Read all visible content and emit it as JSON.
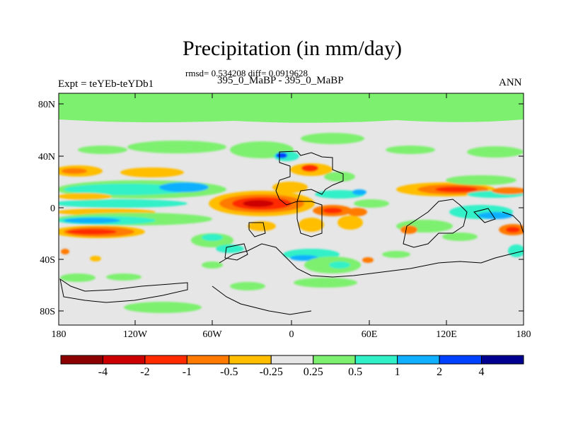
{
  "title": "Precipitation (in mm/day)",
  "stats": "rmsd= 0.534208 diff= 0.0919628",
  "case": "395_0_MaBP - 395_0_MaBP",
  "expt": "Expt = teYEb-teYDb1",
  "season": "ANN",
  "lat_labels": [
    "80N",
    "40N",
    "0",
    "40S",
    "80S"
  ],
  "lon_labels": [
    "180",
    "120W",
    "60W",
    "0",
    "60E",
    "120E",
    "180"
  ],
  "colorbar": {
    "labels": [
      "-4",
      "-2",
      "-1",
      "-0.5",
      "-0.25",
      "0.25",
      "0.5",
      "1",
      "2",
      "4"
    ],
    "colors": [
      "#8b0000",
      "#cc0000",
      "#ff2a00",
      "#ff7a00",
      "#ffbe00",
      "#e6e6e6",
      "#7ef070",
      "#30f0c8",
      "#10b0ff",
      "#0040ff",
      "#000090"
    ]
  },
  "colors": {
    "neutral": "#e6e6e6",
    "land_outline": "#000000"
  }
}
